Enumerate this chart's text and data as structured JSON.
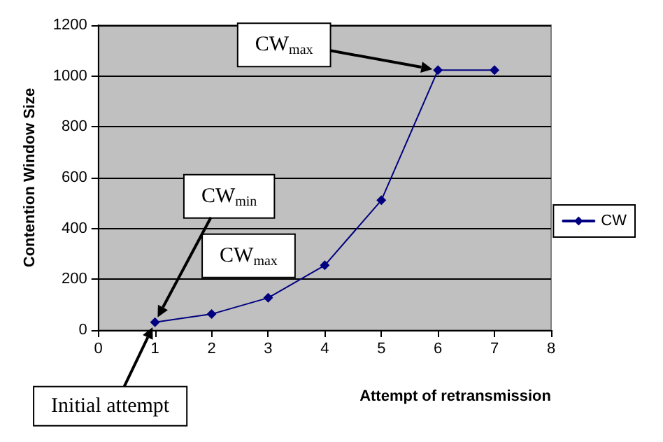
{
  "chart_data": {
    "type": "line",
    "xlabel": "Attempt of retransmission",
    "ylabel": "Contention Window Size",
    "x": [
      1,
      2,
      3,
      4,
      5,
      6,
      7
    ],
    "series": [
      {
        "name": "CW",
        "color": "#000080",
        "values": [
          31,
          63,
          127,
          255,
          511,
          1023,
          1023
        ]
      }
    ],
    "xlim": [
      0,
      8
    ],
    "xticks": [
      0,
      1,
      2,
      3,
      4,
      5,
      6,
      7,
      8
    ],
    "ylim": [
      0,
      1200
    ],
    "yticks": [
      0,
      200,
      400,
      600,
      800,
      1000,
      1200
    ],
    "grid": "y",
    "legend": "right",
    "marker": "diamond",
    "line_style": "solid",
    "annotations": [
      "CW$_{max}$",
      "CW$_{min}$",
      "CW$_{max}$",
      "Initial attempt"
    ]
  }
}
